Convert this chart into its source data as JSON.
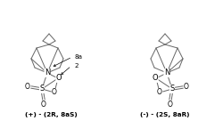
{
  "title_left": "(+) - (2R, 8aS)",
  "title_right": "(-) - (2S, 8aR)",
  "label_8a": "8a",
  "label_2": "2",
  "bg_color": "#ffffff",
  "line_color": "#666666",
  "text_color": "#000000",
  "font_size_labels": 5.2,
  "font_size_title": 5.2,
  "font_size_atoms": 6.0,
  "figsize": [
    2.5,
    1.36
  ],
  "dpi": 100
}
